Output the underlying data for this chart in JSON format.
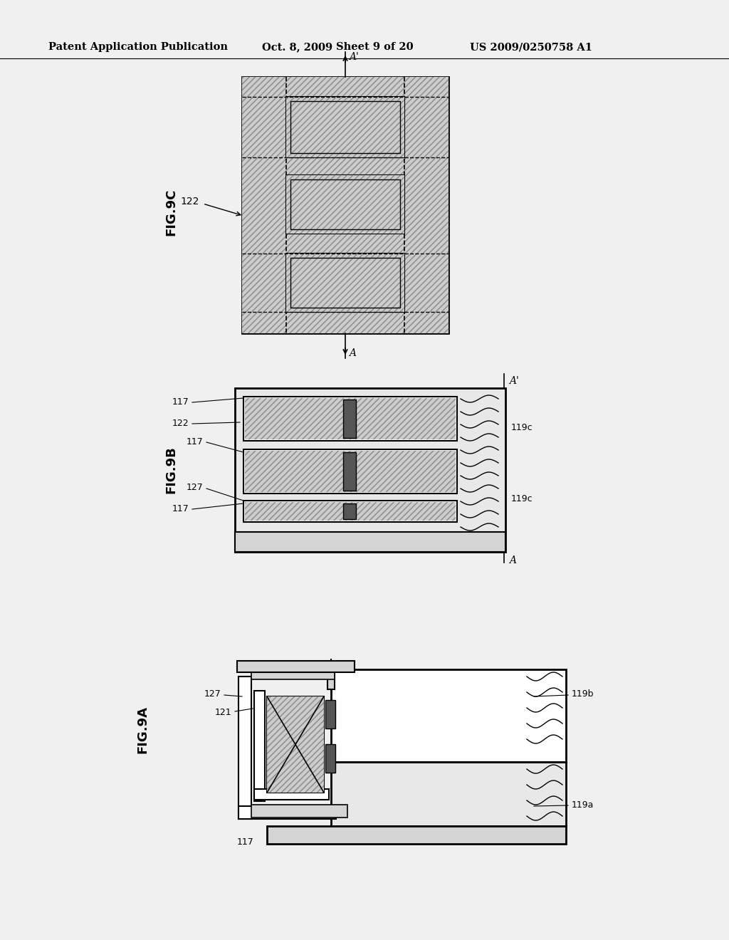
{
  "page_bg": "#f0f0f0",
  "lc": "#000000",
  "header_text": "Patent Application Publication",
  "header_date": "Oct. 8, 2009",
  "header_sheet": "Sheet 9 of 20",
  "header_patent": "US 2009/0250758 A1",
  "fig9c_label": "FIG.9C",
  "fig9b_label": "FIG.9B",
  "fig9a_label": "FIG.9A",
  "hatch_fill": "#cccccc",
  "white_fill": "#ffffff",
  "dark_fill": "#555555",
  "light_fill": "#e8e8e8",
  "mid_fill": "#d4d4d4"
}
